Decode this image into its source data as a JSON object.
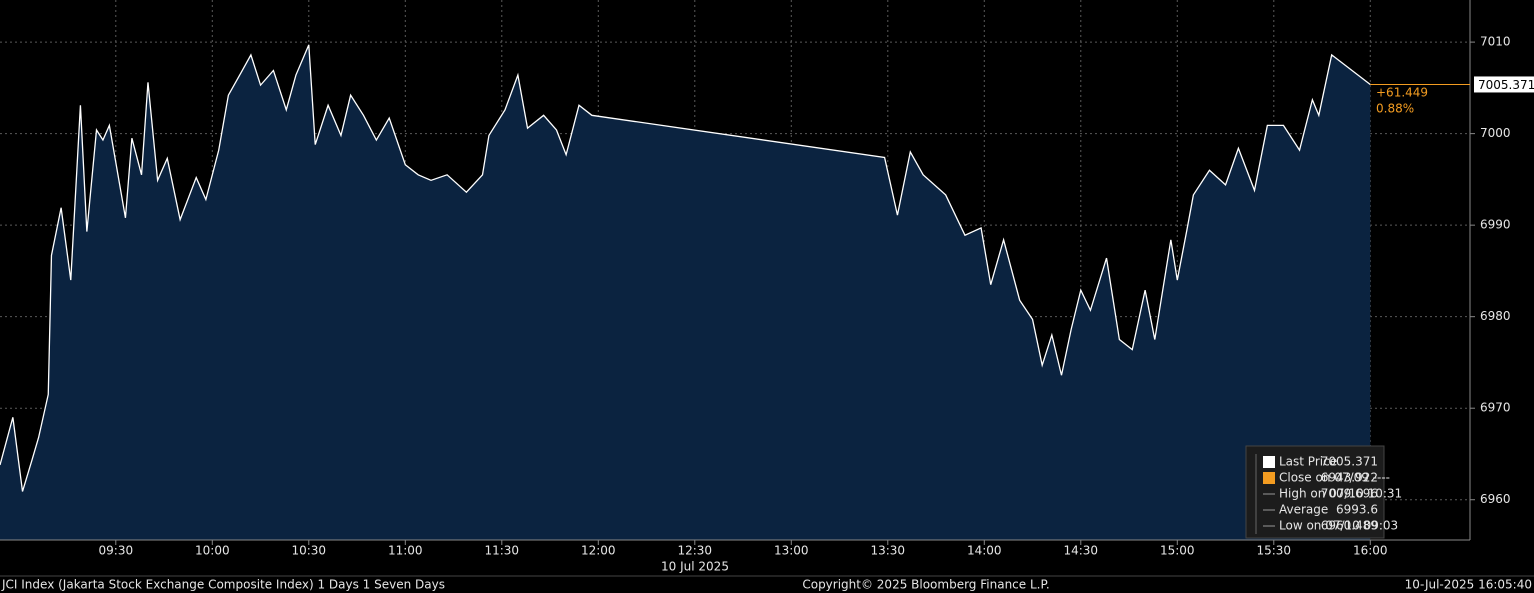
{
  "chart_data": {
    "type": "area",
    "x": [
      "08:54",
      "08:58",
      "09:01",
      "09:04",
      "09:06",
      "09:09",
      "09:10",
      "09:13",
      "09:16",
      "09:19",
      "09:21",
      "09:24",
      "09:26",
      "09:28",
      "09:33",
      "09:35",
      "09:38",
      "09:40",
      "09:43",
      "09:46",
      "09:50",
      "09:55",
      "09:58",
      "10:02",
      "10:05",
      "10:09",
      "10:12",
      "10:15",
      "10:19",
      "10:23",
      "10:26",
      "10:30",
      "10:32",
      "10:36",
      "10:40",
      "10:43",
      "10:47",
      "10:51",
      "10:55",
      "11:00",
      "11:04",
      "11:08",
      "11:13",
      "11:19",
      "11:24",
      "11:26",
      "11:31",
      "11:35",
      "11:38",
      "11:43",
      "11:47",
      "11:50",
      "11:54",
      "11:58",
      "13:29",
      "13:33",
      "13:37",
      "13:41",
      "13:48",
      "13:54",
      "13:59",
      "14:02",
      "14:06",
      "14:11",
      "14:15",
      "14:18",
      "14:21",
      "14:24",
      "14:27",
      "14:30",
      "14:33",
      "14:38",
      "14:42",
      "14:46",
      "14:50",
      "14:53",
      "14:58",
      "15:00",
      "15:03",
      "15:05",
      "15:10",
      "15:15",
      "15:19",
      "15:24",
      "15:28",
      "15:33",
      "15:38",
      "15:42",
      "15:44",
      "15:48",
      "16:00"
    ],
    "series": [
      {
        "name": "Last Price",
        "color": "#ffffff",
        "fill": "#0b2340",
        "values": [
          6963.8,
          6969.0,
          6960.9,
          6964.4,
          6966.8,
          6971.5,
          6986.7,
          6991.9,
          6984.0,
          7003.1,
          6989.3,
          7000.4,
          6999.3,
          7000.9,
          6990.8,
          6999.5,
          6995.5,
          7005.6,
          6994.9,
          6997.3,
          6990.6,
          6995.2,
          6992.8,
          6998.2,
          7004.2,
          7006.7,
          7008.6,
          7005.3,
          7006.9,
          7002.6,
          7006.4,
          7009.7,
          6998.8,
          7003.1,
          6999.8,
          7004.2,
          7002.0,
          6999.3,
          7001.7,
          6996.6,
          6995.5,
          6994.9,
          6995.5,
          6993.6,
          6995.5,
          6999.8,
          7002.6,
          7006.4,
          7000.6,
          7002.0,
          7000.4,
          6997.7,
          7003.1,
          7002.0,
          6997.4,
          6991.1,
          6998.0,
          6995.5,
          6993.3,
          6988.9,
          6989.7,
          6983.5,
          6988.4,
          6981.8,
          6979.7,
          6974.7,
          6978.0,
          6973.6,
          6978.6,
          6982.9,
          6980.7,
          6986.4,
          6977.5,
          6976.4,
          6982.9,
          6977.5,
          6988.4,
          6984.0,
          6989.5,
          6993.3,
          6996.0,
          6994.4,
          6998.4,
          6993.8,
          7000.9,
          7000.9,
          6998.2,
          7003.7,
          7002.0,
          7008.6,
          7005.371
        ]
      }
    ],
    "xlim": [
      "08:54",
      "16:31"
    ],
    "xticks": [
      "09:30",
      "10:00",
      "10:30",
      "11:00",
      "11:30",
      "12:00",
      "12:30",
      "13:00",
      "13:30",
      "14:00",
      "14:30",
      "15:00",
      "15:30",
      "16:00"
    ],
    "date_label": "10 Jul 2025",
    "ylim": [
      6955.6,
      7014.6
    ],
    "yticks": [
      6960,
      6970,
      6980,
      6990,
      7000,
      7010
    ],
    "grid": true,
    "last_label": 7005.371,
    "change": "+61.449",
    "change_pct": "0.88%",
    "legend": [
      {
        "name": "Last Price",
        "value": 7005.371,
        "color": "#ffffff"
      },
      {
        "name": "Close on 07/09 ----",
        "value": 6943.922,
        "color": "#f39c21"
      },
      {
        "name": "High on 07/10 10:31",
        "value": 7009.696
      },
      {
        "name": "Average",
        "value": 6993.6
      },
      {
        "name": "Low on 07/10 09:03",
        "value": 6960.489
      }
    ],
    "footer_left": "JCI Index (Jakarta Stock Exchange Composite Index) 1 Days 1 Seven Days",
    "footer_center": "Copyright© 2025 Bloomberg Finance L.P.",
    "footer_right": "10-Jul-2025 16:05:40"
  }
}
